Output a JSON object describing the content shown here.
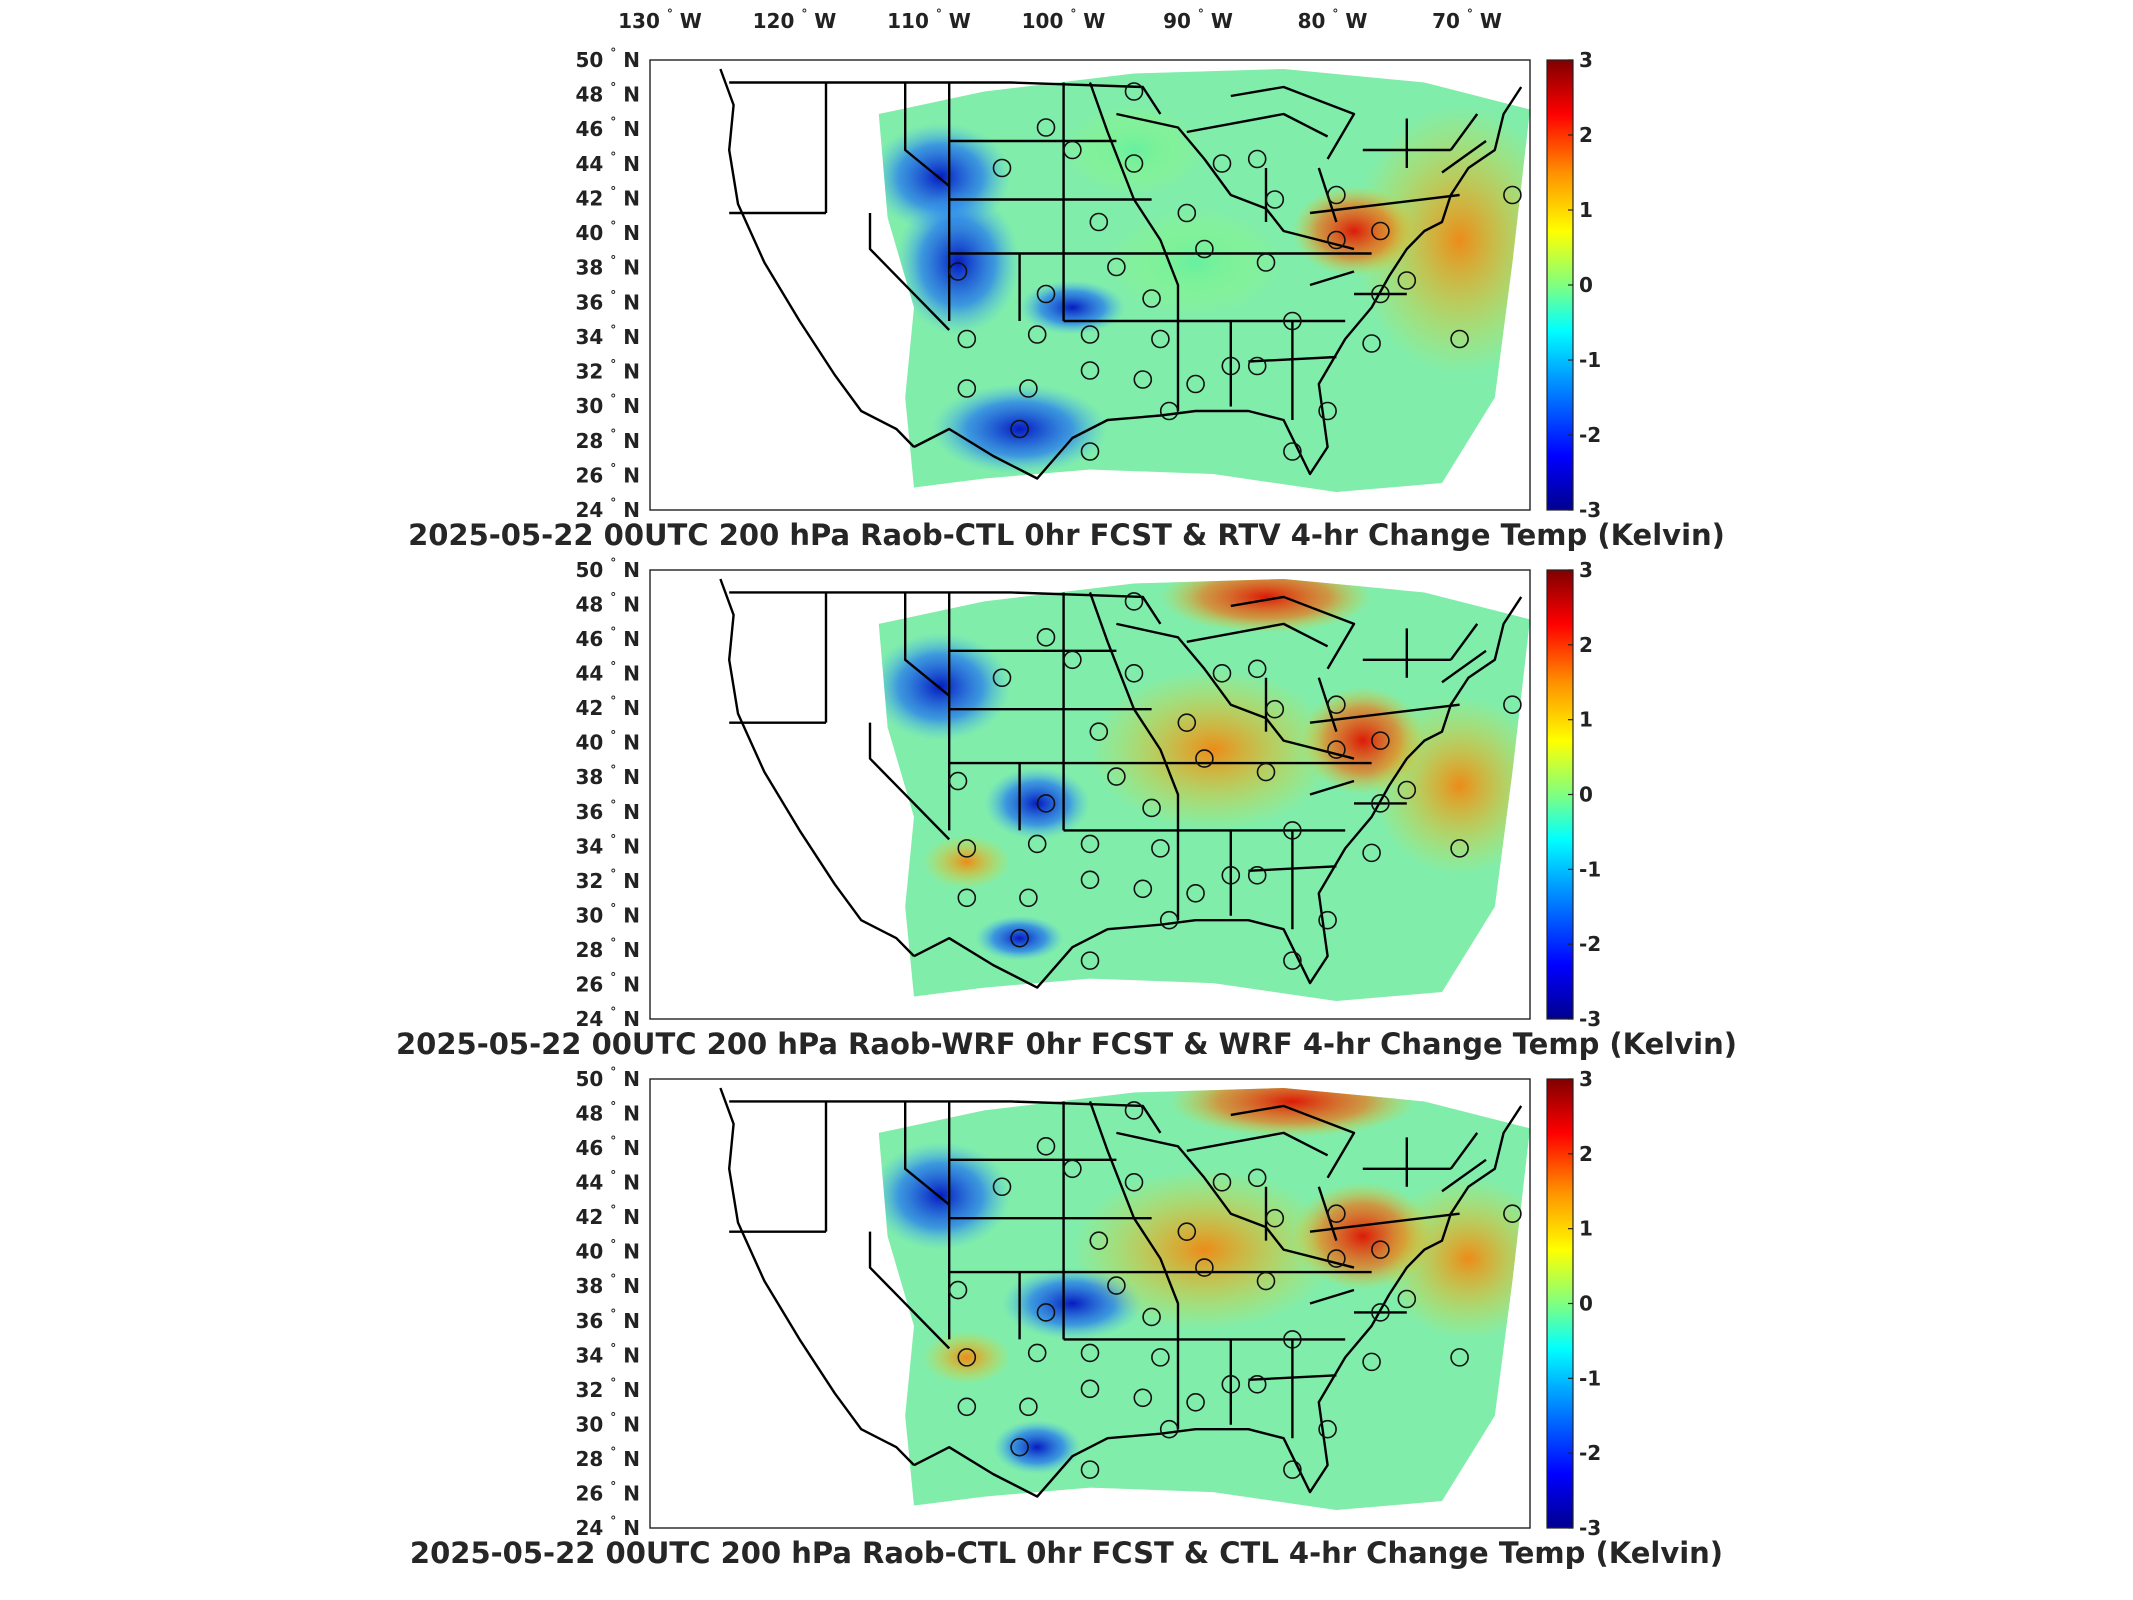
{
  "longitude_labels": [
    "130",
    "120",
    "110",
    "100",
    "90",
    "80",
    "70"
  ],
  "longitude_hemisphere": "W",
  "latitude_labels": [
    "50",
    "48",
    "46",
    "44",
    "42",
    "40",
    "38",
    "36",
    "34",
    "32",
    "30",
    "28",
    "26",
    "24"
  ],
  "latitude_hemisphere": "N",
  "degree_symbol": "°",
  "colorbar": {
    "ticks": [
      "3",
      "2",
      "1",
      "0",
      "-1",
      "-2",
      "-3"
    ],
    "range": [
      -3,
      3
    ],
    "colormap": "jet",
    "colors": [
      "#00008f",
      "#0000ff",
      "#00a0ff",
      "#00ffff",
      "#80ff80",
      "#ffff00",
      "#ff9000",
      "#ff0000",
      "#800000"
    ]
  },
  "panels": [
    {
      "title": "2025-05-22 00UTC 200 hPa Raob-CTL 0hr FCST & RTV 4-hr Change Temp (Kelvin)"
    },
    {
      "title": "2025-05-22 00UTC 200 hPa Raob-WRF 0hr FCST & WRF 4-hr Change Temp (Kelvin)"
    },
    {
      "title": "2025-05-22 00UTC 200 hPa Raob-CTL 0hr FCST & CTL 4-hr Change Temp (Kelvin)"
    }
  ]
}
